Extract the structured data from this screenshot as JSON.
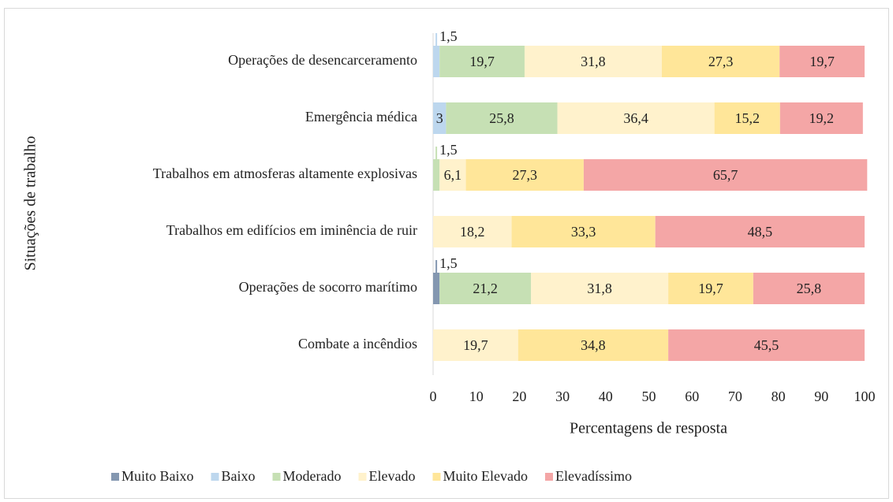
{
  "chart_data": {
    "type": "stacked_barh",
    "x_label": "Percentagens de resposta",
    "y_label": "Situações de trabalho",
    "categories": [
      "Operações de desencarceramento",
      "Emergência médica",
      "Trabalhos em atmosferas altamente explosivas",
      "Trabalhos em edifícios em iminência de ruir",
      "Operações de socorro marítimo",
      "Combate a incêndios"
    ],
    "series": [
      {
        "name": "Muito Baixo",
        "color": "#8497b0",
        "values": [
          null,
          null,
          null,
          null,
          1.5,
          null
        ],
        "value_labels": [
          null,
          null,
          null,
          null,
          "1,5",
          null
        ]
      },
      {
        "name": "Baixo",
        "color": "#bdd7ee",
        "values": [
          1.5,
          3,
          null,
          null,
          null,
          null
        ],
        "value_labels": [
          "1,5",
          "3",
          null,
          null,
          null,
          null
        ]
      },
      {
        "name": "Moderado",
        "color": "#c6e0b4",
        "values": [
          19.7,
          25.8,
          1.5,
          null,
          21.2,
          null
        ],
        "value_labels": [
          "19,7",
          "25,8",
          "1,5",
          null,
          "21,2",
          null
        ]
      },
      {
        "name": "Elevado",
        "color": "#fff2cc",
        "values": [
          31.8,
          36.4,
          6.1,
          18.2,
          31.8,
          19.7
        ],
        "value_labels": [
          "31,8",
          "36,4",
          "6,1",
          "18,2",
          "31,8",
          "19,7"
        ]
      },
      {
        "name": "Muito Elevado",
        "color": "#ffe699",
        "values": [
          27.3,
          15.2,
          27.3,
          33.3,
          19.7,
          34.8
        ],
        "value_labels": [
          "27,3",
          "15,2",
          "27,3",
          "33,3",
          "19,7",
          "34,8"
        ]
      },
      {
        "name": "Elevadíssimo",
        "color": "#f4a6a6",
        "values": [
          19.7,
          19.2,
          65.7,
          48.5,
          25.8,
          45.5
        ],
        "value_labels": [
          "19,7",
          "19,2",
          "65,7",
          "48,5",
          "25,8",
          "45,5"
        ]
      }
    ],
    "xlim": [
      0,
      100
    ],
    "xticks": [
      0,
      10,
      20,
      30,
      40,
      50,
      60,
      70,
      80,
      90,
      100
    ],
    "legend": "bottom"
  }
}
